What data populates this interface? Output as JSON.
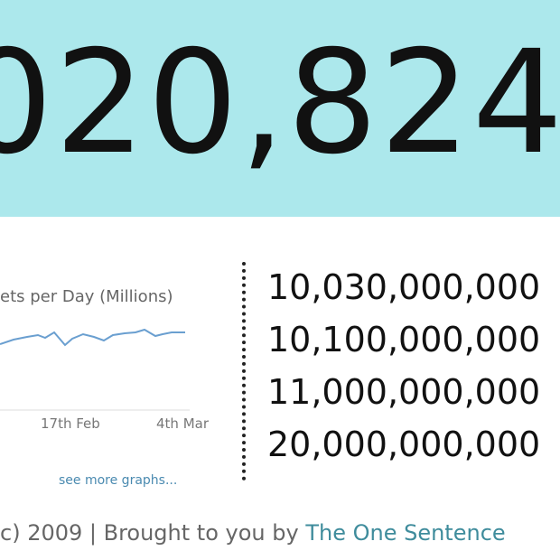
{
  "counter": "020,824,",
  "graph": {
    "title": "ets per Day (Millions)",
    "x_labels": [
      "17th Feb",
      "4th Mar"
    ],
    "more_link": "see more graphs..."
  },
  "milestones": [
    "10,030,000,000",
    "10,100,000,000",
    "11,000,000,000",
    "20,000,000,000"
  ],
  "footer": {
    "text": "c) 2009 | Brought to you by",
    "link": "The One Sentence"
  }
}
